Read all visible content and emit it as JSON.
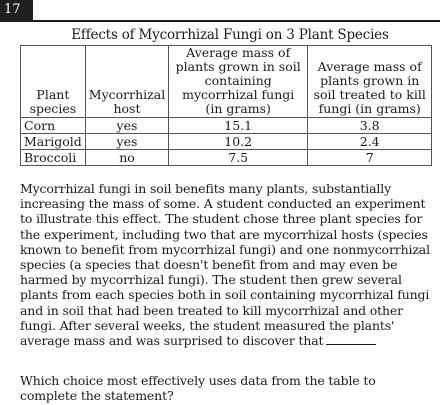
{
  "question_number": "17",
  "table": {
    "caption": "Effects of Mycorrhizal Fungi on 3 Plant Species",
    "headers": [
      "Plant species",
      "Mycorrhizal host",
      "Average mass of plants grown in soil containing mycorrhizal fungi (in grams)",
      "Average mass of plants grown in soil treated to kill fungi (in grams)"
    ],
    "rows": [
      [
        "Corn",
        "yes",
        "15.1",
        "3.8"
      ],
      [
        "Marigold",
        "yes",
        "10.2",
        "2.4"
      ],
      [
        "Broccoli",
        "no",
        "7.5",
        "7"
      ]
    ]
  },
  "passage": "Mycorrhizal fungi in soil benefits many plants, substantially increasing the mass of some. A student conducted an experiment to illustrate this effect. The student chose three plant species for the experiment, including two that are mycorrhizal hosts (species known to benefit from mycorrhizal fungi) and one nonmycorrhizal species (a species that doesn't benefit from and may even be harmed by mycorrhizal fungi). The student then grew several plants from each species both in soil containing mycorrhizal fungi and in soil that had been treated to kill mycorrhizal and other fungi. After several weeks, the student measured the plants' average mass and was surprised to discover that",
  "question": "Which choice most effectively uses data from the table to complete the statement?"
}
